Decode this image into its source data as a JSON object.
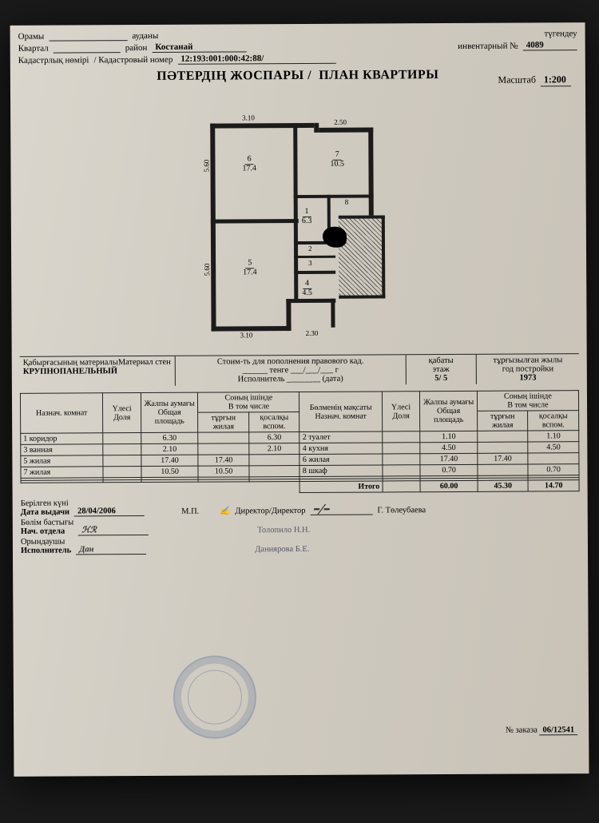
{
  "header": {
    "orams_kk": "Орамы",
    "audany_kk": "ауданы",
    "kvartal_ru": "Квартал",
    "raion_ru": "район",
    "raion_val": "Костанай",
    "tugen_kk": "түгендеу",
    "inv_ru": "инвентарный №",
    "inv_val": "4089",
    "kad_kk": "Кадастрлық нөмірі",
    "kad_ru": "/ Кадастровый номер",
    "kad_val": "12:193:001:000:42:88/",
    "title_kk": "ПӘТЕРДІҢ ЖОСПАРЫ /",
    "title_ru": "ПЛАН КВАРТИРЫ",
    "scale_lbl": "Масштаб",
    "scale_val": "1:200"
  },
  "plan": {
    "dims": {
      "top_l": "3.10",
      "top_r": "2.50",
      "left_up": "5.60",
      "left_dn": "5.60",
      "bot_l": "3.10",
      "bot_r": "2.30"
    },
    "rooms": {
      "r6": {
        "n": "6",
        "a": "17.4"
      },
      "r7": {
        "n": "7",
        "a": "10.5"
      },
      "r1": {
        "n": "1",
        "a": "6.3"
      },
      "r5": {
        "n": "5",
        "a": "17.4"
      },
      "r4": {
        "n": "4",
        "a": "4.5"
      },
      "r2": {
        "n": "2"
      },
      "r3": {
        "n": "3"
      },
      "r8": {
        "n": "8"
      }
    }
  },
  "meta": {
    "wall_kk": "Қабырғасының материалы",
    "wall_ru": "Материал стен",
    "wall_val": "КРУПНОПАНЕЛЬНЫЙ",
    "cost_ru": "Стоим-ть для пополнения правового кад.",
    "tenge": "тенге",
    "isp": "Исполнитель",
    "data": "(дата)",
    "floor_kk": "қабаты",
    "floor_ru": "этаж",
    "floor_val": "5/ 5",
    "year_kk": "тұрғызылған жылы",
    "year_ru": "год постройки",
    "year_val": "1973"
  },
  "thead": {
    "назнач": "Назнач. комнат",
    "ules_kk": "Үлесі",
    "ules_ru": "Доля",
    "total_kk": "Жалпы аумағы",
    "total_ru": "Общая площадь",
    "vtom_kk": "Соның ішінде",
    "vtom_ru": "В том числе",
    "zhil_kk": "тұрғын",
    "zhil_ru": "жилая",
    "vsp_kk": "қосалқы",
    "vsp_ru": "вспом.",
    "назнач2": "Бөлменің мақсаты",
    "назнач2б": "Назнач. комнат"
  },
  "rows": {
    "l": [
      {
        "n": "1 коридор",
        "d": "",
        "t": "6.30",
        "z": "",
        "v": "6.30"
      },
      {
        "n": "3 ванная",
        "d": "",
        "t": "2.10",
        "z": "",
        "v": "2.10"
      },
      {
        "n": "5 жилая",
        "d": "",
        "t": "17.40",
        "z": "17.40",
        "v": ""
      },
      {
        "n": "7 жилая",
        "d": "",
        "t": "10.50",
        "z": "10.50",
        "v": ""
      }
    ],
    "r": [
      {
        "n": "2 туалет",
        "d": "",
        "t": "1.10",
        "z": "",
        "v": "1.10"
      },
      {
        "n": "4 кухня",
        "d": "",
        "t": "4.50",
        "z": "",
        "v": "4.50"
      },
      {
        "n": "6 жилая",
        "d": "",
        "t": "17.40",
        "z": "17.40",
        "v": ""
      },
      {
        "n": "8 шкаф",
        "d": "",
        "t": "0.70",
        "z": "",
        "v": "0.70"
      }
    ]
  },
  "totals": {
    "lbl": "Итого",
    "t": "60.00",
    "z": "45.30",
    "v": "14.70"
  },
  "footer": {
    "date_kk": "Берілген күні",
    "date_ru": "Дата выдачи",
    "date_val": "28/04/2006",
    "mp": "М.П.",
    "dir": "Директор/Директор",
    "dir_name": "Г. Төлеубаева",
    "nach_kk": "Бөлім бастығы",
    "nach_ru": "Нач. отдела",
    "nach_name": "Толопило Н.Н.",
    "isp_kk": "Орындаушы",
    "isp_ru": "Исполнитель",
    "isp_name": "Даниярова Б.Е.",
    "order": "№ заказа",
    "order_val": "06/12541"
  }
}
